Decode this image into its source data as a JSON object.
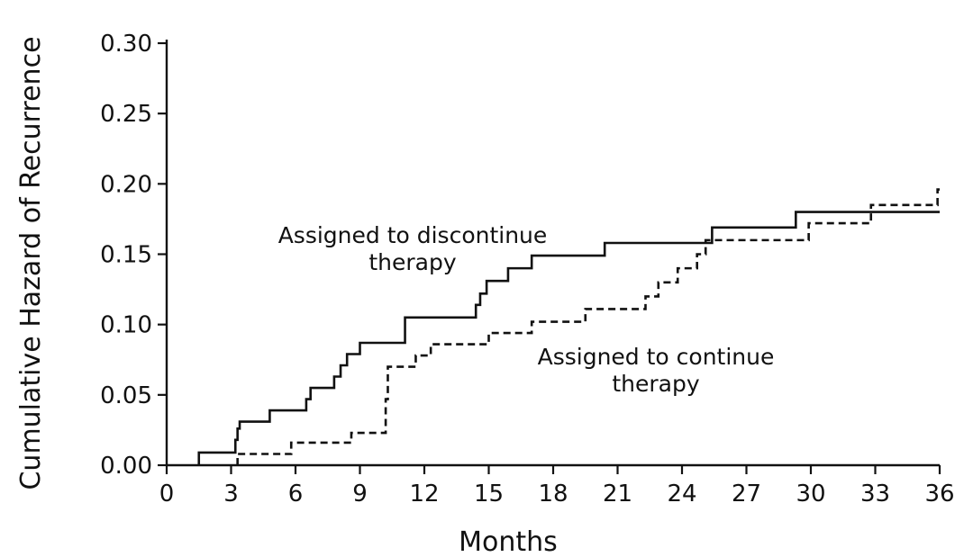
{
  "chart_data": {
    "type": "line",
    "step": true,
    "title": "",
    "xlabel": "Months",
    "ylabel": "Cumulative Hazard of Recurrence",
    "xlim": [
      0,
      36
    ],
    "ylim": [
      0,
      0.3
    ],
    "x_ticks": [
      "0",
      "3",
      "6",
      "9",
      "12",
      "15",
      "18",
      "21",
      "24",
      "27",
      "30",
      "33",
      "36"
    ],
    "y_ticks": [
      "0.00",
      "0.05",
      "0.10",
      "0.15",
      "0.20",
      "0.25",
      "0.30"
    ],
    "grid": false,
    "legend": "none",
    "annotations": [
      {
        "lines": [
          "Assigned to discontinue",
          "therapy"
        ],
        "series": "discontinue"
      },
      {
        "lines": [
          "Assigned to continue",
          "therapy"
        ],
        "series": "continue"
      }
    ],
    "series": [
      {
        "key": "discontinue",
        "style": "solid",
        "color": "#111111",
        "points": [
          [
            1.5,
            0.009
          ],
          [
            3.2,
            0.018
          ],
          [
            3.3,
            0.026
          ],
          [
            3.4,
            0.031
          ],
          [
            4.8,
            0.039
          ],
          [
            6.5,
            0.047
          ],
          [
            6.7,
            0.055
          ],
          [
            7.8,
            0.063
          ],
          [
            8.1,
            0.071
          ],
          [
            8.4,
            0.079
          ],
          [
            9.0,
            0.087
          ],
          [
            11.1,
            0.105
          ],
          [
            14.4,
            0.114
          ],
          [
            14.6,
            0.122
          ],
          [
            14.9,
            0.131
          ],
          [
            15.9,
            0.14
          ],
          [
            17.0,
            0.149
          ],
          [
            20.4,
            0.158
          ],
          [
            25.4,
            0.169
          ],
          [
            29.3,
            0.18
          ],
          [
            36.0,
            0.18
          ]
        ]
      },
      {
        "key": "continue",
        "style": "dashed",
        "color": "#111111",
        "points": [
          [
            3.3,
            0.008
          ],
          [
            5.8,
            0.016
          ],
          [
            8.6,
            0.023
          ],
          [
            10.2,
            0.047
          ],
          [
            10.3,
            0.07
          ],
          [
            11.6,
            0.078
          ],
          [
            12.3,
            0.086
          ],
          [
            15.0,
            0.094
          ],
          [
            17.0,
            0.102
          ],
          [
            19.5,
            0.111
          ],
          [
            22.3,
            0.12
          ],
          [
            22.9,
            0.13
          ],
          [
            23.8,
            0.14
          ],
          [
            24.7,
            0.15
          ],
          [
            25.1,
            0.16
          ],
          [
            29.9,
            0.172
          ],
          [
            32.8,
            0.185
          ],
          [
            35.9,
            0.196
          ],
          [
            36.0,
            0.196
          ]
        ]
      }
    ]
  }
}
